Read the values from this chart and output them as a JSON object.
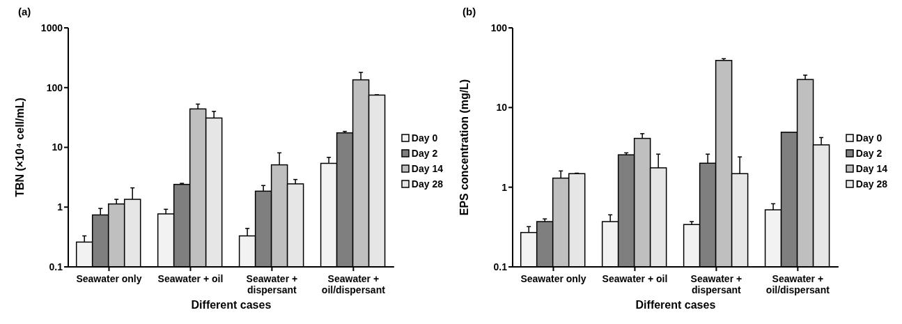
{
  "chart_data": [
    {
      "type": "bar",
      "title": "(a)",
      "xlabel": "Different cases",
      "ylabel": "TBN (×10⁴ cell/mL)",
      "categories": [
        "Seawater only",
        "Seawater + oil",
        "Seawater + dispersant",
        "Seawater + oil/dispersant"
      ],
      "log": true,
      "ylim": [
        0.1,
        1000
      ],
      "yticks": [
        0.1,
        1,
        10,
        100,
        1000
      ],
      "legend": "right",
      "series": [
        {
          "name": "Day 0",
          "color": "#f2f2f2",
          "values": [
            0.26,
            0.77,
            0.33,
            5.4
          ],
          "errors": [
            [
              0.26,
              0.33
            ],
            [
              0.77,
              0.92
            ],
            [
              0.33,
              0.44
            ],
            [
              5.4,
              6.8
            ]
          ]
        },
        {
          "name": "Day 2",
          "color": "#7f7f7f",
          "values": [
            0.74,
            2.4,
            1.85,
            17.5
          ],
          "errors": [
            [
              0.74,
              0.95
            ],
            [
              2.4,
              2.5
            ],
            [
              1.85,
              2.3
            ],
            [
              17.5,
              18.5
            ]
          ]
        },
        {
          "name": "Day 14",
          "color": "#bfbfbf",
          "values": [
            1.13,
            44,
            5.1,
            135
          ],
          "errors": [
            [
              1.13,
              1.35
            ],
            [
              44,
              53
            ],
            [
              5.1,
              8.1
            ],
            [
              135,
              180
            ]
          ]
        },
        {
          "name": "Day 28",
          "color": "#e6e6e6",
          "values": [
            1.35,
            31,
            2.45,
            75
          ],
          "errors": [
            [
              1.35,
              2.1
            ],
            [
              31,
              40
            ],
            [
              2.45,
              2.9
            ],
            [
              75,
              76
            ]
          ]
        }
      ]
    },
    {
      "type": "bar",
      "title": "(b)",
      "xlabel": "Different cases",
      "ylabel": "EPS concentration (mg/L)",
      "categories": [
        "Seawater only",
        "Seawater + oil",
        "Seawater + dispersant",
        "Seawater + oil/dispersant"
      ],
      "log": true,
      "ylim": [
        0.1,
        100
      ],
      "yticks": [
        0.1,
        1,
        10,
        100
      ],
      "legend": "right",
      "series": [
        {
          "name": "Day 0",
          "color": "#f2f2f2",
          "values": [
            0.27,
            0.37,
            0.34,
            0.52
          ],
          "errors": [
            [
              0.27,
              0.32
            ],
            [
              0.37,
              0.45
            ],
            [
              0.34,
              0.37
            ],
            [
              0.52,
              0.62
            ]
          ]
        },
        {
          "name": "Day 2",
          "color": "#7f7f7f",
          "values": [
            0.37,
            2.55,
            2.0,
            4.9
          ],
          "errors": [
            [
              0.37,
              0.4
            ],
            [
              2.55,
              2.7
            ],
            [
              2.0,
              2.6
            ],
            null
          ]
        },
        {
          "name": "Day 14",
          "color": "#bfbfbf",
          "values": [
            1.3,
            4.1,
            39,
            22.5
          ],
          "errors": [
            [
              1.3,
              1.6
            ],
            [
              4.1,
              4.7
            ],
            [
              39,
              41
            ],
            [
              22.5,
              25.5
            ]
          ]
        },
        {
          "name": "Day 28",
          "color": "#e6e6e6",
          "values": [
            1.48,
            1.75,
            1.48,
            3.4
          ],
          "errors": [
            [
              1.48,
              1.5
            ],
            [
              1.75,
              2.6
            ],
            [
              1.48,
              2.4
            ],
            [
              3.4,
              4.2
            ]
          ]
        }
      ]
    }
  ]
}
